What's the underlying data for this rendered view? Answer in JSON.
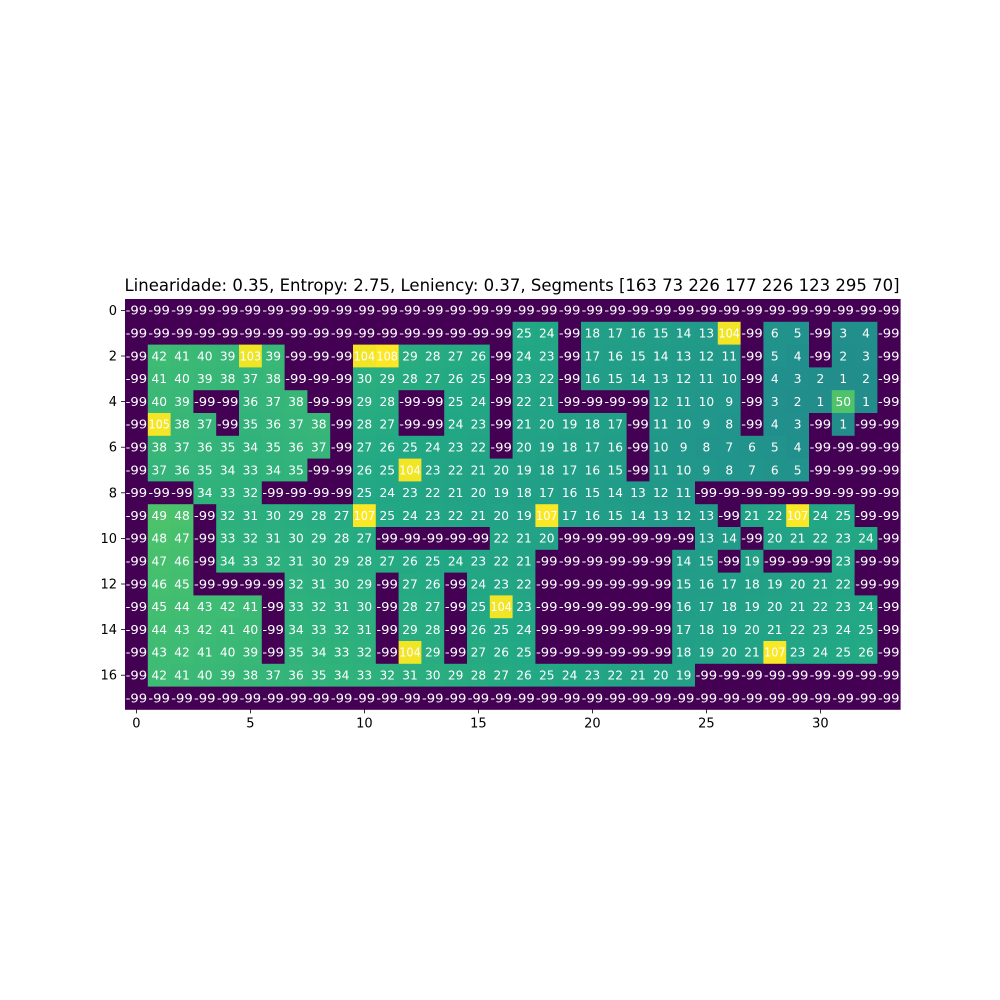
{
  "chart_data": {
    "type": "heatmap",
    "title": "Linearidade: 0.35, Entropy: 2.75, Leniency: 0.37, Segments [163  73 226 177 226 123 295  70]",
    "xlabel": "",
    "ylabel": "",
    "colormap": "viridis",
    "vmin": -99,
    "vmax": 108,
    "xticks": [
      0,
      5,
      10,
      15,
      20,
      25,
      30
    ],
    "yticks": [
      0,
      2,
      4,
      6,
      8,
      10,
      12,
      14,
      16
    ],
    "grid": false,
    "values": [
      [
        -99,
        -99,
        -99,
        -99,
        -99,
        -99,
        -99,
        -99,
        -99,
        -99,
        -99,
        -99,
        -99,
        -99,
        -99,
        -99,
        -99,
        -99,
        -99,
        -99,
        -99,
        -99,
        -99,
        -99,
        -99,
        -99,
        -99,
        -99,
        -99,
        -99,
        -99,
        -99,
        -99,
        -99
      ],
      [
        -99,
        -99,
        -99,
        -99,
        -99,
        -99,
        -99,
        -99,
        -99,
        -99,
        -99,
        -99,
        -99,
        -99,
        -99,
        -99,
        -99,
        25,
        24,
        -99,
        18,
        17,
        16,
        15,
        14,
        13,
        104,
        -99,
        6,
        5,
        -99,
        3,
        4,
        -99
      ],
      [
        -99,
        42,
        41,
        40,
        39,
        103,
        39,
        -99,
        -99,
        -99,
        104,
        108,
        29,
        28,
        27,
        26,
        -99,
        24,
        23,
        -99,
        17,
        16,
        15,
        14,
        13,
        12,
        11,
        -99,
        5,
        4,
        -99,
        2,
        3,
        -99
      ],
      [
        -99,
        41,
        40,
        39,
        38,
        37,
        38,
        -99,
        -99,
        -99,
        30,
        29,
        28,
        27,
        26,
        25,
        -99,
        23,
        22,
        -99,
        16,
        15,
        14,
        13,
        12,
        11,
        10,
        -99,
        4,
        3,
        2,
        1,
        2,
        -99
      ],
      [
        -99,
        40,
        39,
        -99,
        -99,
        36,
        37,
        38,
        -99,
        -99,
        29,
        28,
        -99,
        -99,
        25,
        24,
        -99,
        22,
        21,
        -99,
        -99,
        -99,
        -99,
        12,
        11,
        10,
        9,
        -99,
        3,
        2,
        1,
        50,
        1,
        -99
      ],
      [
        -99,
        105,
        38,
        37,
        -99,
        35,
        36,
        37,
        38,
        -99,
        28,
        27,
        -99,
        -99,
        24,
        23,
        -99,
        21,
        20,
        19,
        18,
        17,
        -99,
        11,
        10,
        9,
        8,
        -99,
        4,
        3,
        -99,
        1,
        -99,
        -99
      ],
      [
        -99,
        38,
        37,
        36,
        35,
        34,
        35,
        36,
        37,
        -99,
        27,
        26,
        25,
        24,
        23,
        22,
        -99,
        20,
        19,
        18,
        17,
        16,
        -99,
        10,
        9,
        8,
        7,
        6,
        5,
        4,
        -99,
        -99,
        -99,
        -99
      ],
      [
        -99,
        37,
        36,
        35,
        34,
        33,
        34,
        35,
        -99,
        -99,
        26,
        25,
        104,
        23,
        22,
        21,
        20,
        19,
        18,
        17,
        16,
        15,
        -99,
        11,
        10,
        9,
        8,
        7,
        6,
        5,
        -99,
        -99,
        -99,
        -99
      ],
      [
        -99,
        -99,
        -99,
        34,
        33,
        32,
        -99,
        -99,
        -99,
        -99,
        25,
        24,
        23,
        22,
        21,
        20,
        19,
        18,
        17,
        16,
        15,
        14,
        13,
        12,
        11,
        -99,
        -99,
        -99,
        -99,
        -99,
        -99,
        -99,
        -99,
        -99
      ],
      [
        -99,
        49,
        48,
        -99,
        32,
        31,
        30,
        29,
        28,
        27,
        107,
        25,
        24,
        23,
        22,
        21,
        20,
        19,
        107,
        17,
        16,
        15,
        14,
        13,
        12,
        13,
        -99,
        21,
        22,
        107,
        24,
        25,
        -99,
        -99
      ],
      [
        -99,
        48,
        47,
        -99,
        33,
        32,
        31,
        30,
        29,
        28,
        27,
        -99,
        -99,
        -99,
        -99,
        -99,
        22,
        21,
        20,
        -99,
        -99,
        -99,
        -99,
        -99,
        -99,
        13,
        14,
        -99,
        20,
        21,
        22,
        23,
        24,
        -99
      ],
      [
        -99,
        47,
        46,
        -99,
        34,
        33,
        32,
        31,
        30,
        29,
        28,
        27,
        26,
        25,
        24,
        23,
        22,
        21,
        -99,
        -99,
        -99,
        -99,
        -99,
        -99,
        14,
        15,
        -99,
        19,
        -99,
        -99,
        -99,
        23,
        -99,
        -99
      ],
      [
        -99,
        46,
        45,
        -99,
        -99,
        -99,
        -99,
        32,
        31,
        30,
        29,
        -99,
        27,
        26,
        -99,
        24,
        23,
        22,
        -99,
        -99,
        -99,
        -99,
        -99,
        -99,
        15,
        16,
        17,
        18,
        19,
        20,
        21,
        22,
        -99,
        -99
      ],
      [
        -99,
        45,
        44,
        43,
        42,
        41,
        -99,
        33,
        32,
        31,
        30,
        -99,
        28,
        27,
        -99,
        25,
        104,
        23,
        -99,
        -99,
        -99,
        -99,
        -99,
        -99,
        16,
        17,
        18,
        19,
        20,
        21,
        22,
        23,
        24,
        -99
      ],
      [
        -99,
        44,
        43,
        42,
        41,
        40,
        -99,
        34,
        33,
        32,
        31,
        -99,
        29,
        28,
        -99,
        26,
        25,
        24,
        -99,
        -99,
        -99,
        -99,
        -99,
        -99,
        17,
        18,
        19,
        20,
        21,
        22,
        23,
        24,
        25,
        -99
      ],
      [
        -99,
        43,
        42,
        41,
        40,
        39,
        -99,
        35,
        34,
        33,
        32,
        -99,
        104,
        29,
        -99,
        27,
        26,
        25,
        -99,
        -99,
        -99,
        -99,
        -99,
        -99,
        18,
        19,
        20,
        21,
        107,
        23,
        24,
        25,
        26,
        -99
      ],
      [
        -99,
        42,
        41,
        40,
        39,
        38,
        37,
        36,
        35,
        34,
        33,
        32,
        31,
        30,
        29,
        28,
        27,
        26,
        25,
        24,
        23,
        22,
        21,
        20,
        19,
        -99,
        -99,
        -99,
        -99,
        -99,
        -99,
        -99,
        -99,
        -99
      ],
      [
        -99,
        -99,
        -99,
        -99,
        -99,
        -99,
        -99,
        -99,
        -99,
        -99,
        -99,
        -99,
        -99,
        -99,
        -99,
        -99,
        -99,
        -99,
        -99,
        -99,
        -99,
        -99,
        -99,
        -99,
        -99,
        -99,
        -99,
        -99,
        -99,
        -99,
        -99,
        -99,
        -99,
        -99
      ]
    ]
  }
}
